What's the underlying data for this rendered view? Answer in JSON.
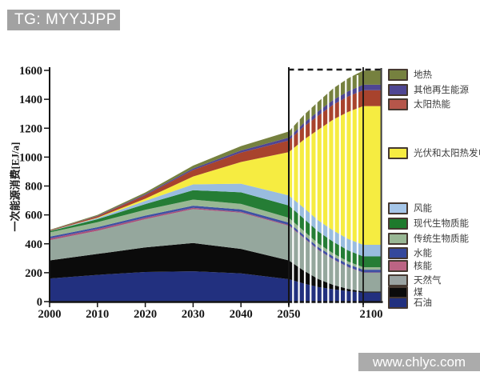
{
  "watermarks": {
    "top_left": "TG: MYYJJPP",
    "bottom_right": "www.chlyc.com"
  },
  "chart_data": {
    "type": "area",
    "stacked": true,
    "title": "",
    "ylabel": "一次能源消费[EJ/a]",
    "ylim": [
      0,
      1600
    ],
    "yticks": [
      0,
      200,
      400,
      600,
      800,
      1000,
      1200,
      1400,
      1600
    ],
    "xticks": [
      2000,
      2010,
      2020,
      2030,
      2040,
      2050,
      2100
    ],
    "x_axis_compressed_after": 2050,
    "striped_region": [
      2050,
      2100
    ],
    "dashed_guide_y": 1600,
    "grid": false,
    "legend_position": "right",
    "years": [
      2000,
      2010,
      2020,
      2030,
      2040,
      2050,
      2060,
      2070,
      2080,
      2090,
      2100
    ],
    "series": [
      {
        "key": "oil",
        "label": "石油",
        "color": "#22307f",
        "values": [
          160,
          185,
          205,
          210,
          195,
          155,
          125,
          100,
          85,
          72,
          62
        ]
      },
      {
        "key": "coal",
        "label": "煤",
        "color": "#0b0b0b",
        "values": [
          125,
          145,
          170,
          195,
          170,
          130,
          90,
          55,
          30,
          15,
          8
        ]
      },
      {
        "key": "natural-gas",
        "label": "天然气",
        "color": "#95a79d",
        "values": [
          140,
          160,
          195,
          235,
          250,
          240,
          225,
          200,
          175,
          150,
          130
        ]
      },
      {
        "key": "nuclear",
        "label": "核能",
        "color": "#a8517a",
        "values": [
          12,
          12,
          11,
          9,
          7,
          5,
          4,
          3,
          3,
          2,
          2
        ]
      },
      {
        "key": "hydro",
        "label": "水能",
        "color": "#3f51a3",
        "values": [
          12,
          13,
          14,
          15,
          16,
          17,
          17,
          18,
          18,
          19,
          19
        ]
      },
      {
        "key": "traditional-biomass",
        "label": "传统生物质能",
        "color": "#99b794",
        "values": [
          30,
          35,
          40,
          42,
          38,
          33,
          29,
          25,
          22,
          19,
          17
        ]
      },
      {
        "key": "modern-biomass",
        "label": "现代生物质能",
        "color": "#257d35",
        "values": [
          8,
          20,
          40,
          65,
          80,
          85,
          85,
          83,
          80,
          77,
          75
        ]
      },
      {
        "key": "wind",
        "label": "风能",
        "color": "#99bcdf",
        "values": [
          2,
          8,
          22,
          40,
          60,
          70,
          75,
          77,
          78,
          79,
          80
        ]
      },
      {
        "key": "solar-power",
        "label": "光伏和太阳热发电",
        "color": "#f6ec41",
        "values": [
          0,
          3,
          15,
          55,
          150,
          300,
          470,
          630,
          770,
          880,
          960
        ]
      },
      {
        "key": "solar-thermal",
        "label": "太阳热能",
        "color": "#a8432d",
        "values": [
          3,
          10,
          25,
          45,
          65,
          80,
          90,
          98,
          103,
          107,
          110
        ]
      },
      {
        "key": "other-renewables",
        "label": "其他再生能源",
        "color": "#4f4693",
        "values": [
          1,
          3,
          6,
          10,
          15,
          20,
          25,
          29,
          33,
          36,
          38
        ]
      },
      {
        "key": "geothermal",
        "label": "地热",
        "color": "#76813f",
        "values": [
          3,
          6,
          12,
          20,
          30,
          42,
          55,
          68,
          80,
          90,
          98
        ]
      }
    ],
    "legend": [
      {
        "key": "geothermal",
        "label": "地热",
        "color": "#76813f"
      },
      {
        "key": "other-renewables",
        "label": "其他再生能源",
        "color": "#4f4693"
      },
      {
        "key": "solar-thermal",
        "label": "太阳热能",
        "color": "#b5564a"
      },
      {
        "key": "solar-power",
        "label": "光伏和太阳热发电",
        "color": "#f6ec41"
      },
      {
        "key": "wind",
        "label": "风能",
        "color": "#a6c6e8"
      },
      {
        "key": "modern-biomass",
        "label": "现代生物质能",
        "color": "#1e7a2c"
      },
      {
        "key": "traditional-biomass",
        "label": "传统生物质能",
        "color": "#99b794"
      },
      {
        "key": "hydro",
        "label": "水能",
        "color": "#35489c"
      },
      {
        "key": "nuclear",
        "label": "核能",
        "color": "#bc6484"
      },
      {
        "key": "natural-gas",
        "label": "天然气",
        "color": "#9aa3a2"
      },
      {
        "key": "coal",
        "label": "煤",
        "color": "#0b0b0b"
      },
      {
        "key": "oil",
        "label": "石油",
        "color": "#22307f"
      }
    ]
  }
}
